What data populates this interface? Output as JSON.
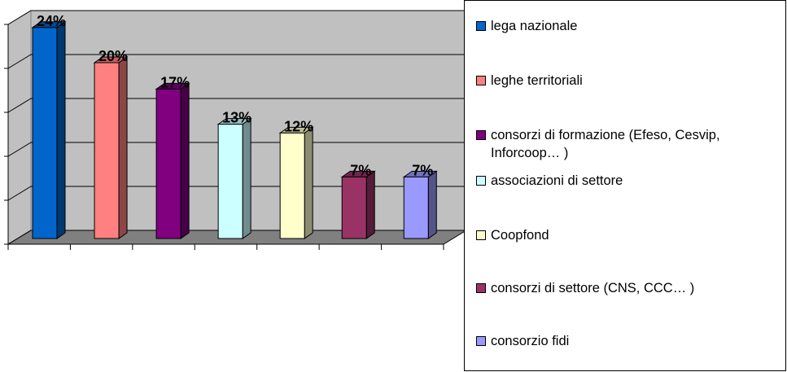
{
  "chart_data": {
    "type": "bar",
    "ylim": [
      0,
      25
    ],
    "yticks": [
      0,
      5,
      10,
      15,
      20,
      25
    ],
    "grid": true,
    "legend": "right",
    "series": [
      {
        "name": "lega nazionale",
        "color": "#0066cc",
        "values": [
          24
        ],
        "value_labels": [
          "24%"
        ]
      },
      {
        "name": "leghe territoriali",
        "color": "#ff8080",
        "values": [
          20
        ],
        "value_labels": [
          "20%"
        ]
      },
      {
        "name": "consorzi di formazione (Efeso, Cesvip, Inforcoop… )",
        "color": "#800080",
        "values": [
          17
        ],
        "value_labels": [
          "17%"
        ]
      },
      {
        "name": "associazioni di settore",
        "color": "#ccffff",
        "values": [
          13
        ],
        "value_labels": [
          "13%"
        ]
      },
      {
        "name": "Coopfond",
        "color": "#ffffcc",
        "values": [
          12
        ],
        "value_labels": [
          "12%"
        ]
      },
      {
        "name": "consorzi di settore (CNS, CCC… )",
        "color": "#993366",
        "values": [
          7
        ],
        "value_labels": [
          "7%"
        ]
      },
      {
        "name": "consorzio fidi",
        "color": "#9999ff",
        "values": [
          7
        ],
        "value_labels": [
          "7%"
        ]
      }
    ]
  }
}
